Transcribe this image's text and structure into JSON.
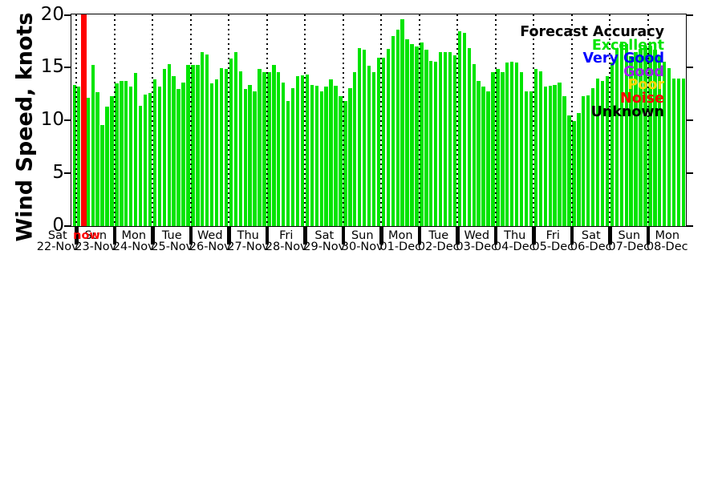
{
  "figure": {
    "ylabel": "Wind Speed, knots",
    "yticks": [
      0,
      5,
      10,
      15,
      20
    ],
    "now_label": "now",
    "background": "#ffffff"
  },
  "legend": {
    "title": "Forecast Accuracy",
    "title_color": "#000000",
    "entries": [
      {
        "label": "Excellent",
        "color": "#00e400"
      },
      {
        "label": "Very Good",
        "color": "#0000ff"
      },
      {
        "label": "Good",
        "color": "#a020f0"
      },
      {
        "label": "Poor",
        "color": "#ffd700"
      },
      {
        "label": "Noise",
        "color": "#ff0000"
      },
      {
        "label": "Unknown",
        "color": "#000000"
      }
    ]
  },
  "chart_data": {
    "type": "bar",
    "title": "",
    "xlabel": "",
    "ylabel": "Wind Speed, knots",
    "ylim": [
      0,
      20
    ],
    "grid": "vertical-dotted-daily",
    "legend_position": "top-right",
    "bar_color": "#00e400",
    "now_line": {
      "label": "now",
      "color": "#ff0000",
      "value": 20,
      "day": "Sun 23-Nov",
      "slot": 1
    },
    "days": [
      {
        "weekday": "Sat",
        "date": "22-Nov",
        "partial": true,
        "values": [
          13.0,
          13.4
        ]
      },
      {
        "weekday": "Sun",
        "date": "23-Nov",
        "values": [
          13.2,
          12.0,
          12.2,
          15.3,
          12.7,
          9.6,
          11.3,
          12.3
        ]
      },
      {
        "weekday": "Mon",
        "date": "24-Nov",
        "values": [
          13.5,
          13.8,
          13.8,
          13.2,
          14.5,
          11.4,
          12.5,
          12.6
        ]
      },
      {
        "weekday": "Tue",
        "date": "25-Nov",
        "values": [
          13.9,
          13.2,
          14.9,
          15.4,
          14.2,
          13.0,
          13.6,
          15.3
        ]
      },
      {
        "weekday": "Wed",
        "date": "26-Nov",
        "values": [
          15.3,
          15.3,
          16.5,
          16.3,
          13.5,
          13.9,
          15.0,
          14.9
        ]
      },
      {
        "weekday": "Thu",
        "date": "27-Nov",
        "values": [
          15.9,
          16.5,
          14.7,
          13.0,
          13.4,
          12.8,
          14.9,
          14.6
        ]
      },
      {
        "weekday": "Fri",
        "date": "28-Nov",
        "values": [
          14.6,
          15.3,
          14.6,
          13.6,
          11.9,
          13.1,
          14.2,
          14.3
        ]
      },
      {
        "weekday": "Sat",
        "date": "29-Nov",
        "values": [
          14.4,
          13.4,
          13.3,
          12.8,
          13.2,
          13.9,
          13.3,
          12.3
        ]
      },
      {
        "weekday": "Sun",
        "date": "30-Nov",
        "values": [
          11.9,
          13.1,
          14.6,
          16.9,
          16.7,
          15.2,
          14.6,
          16.0
        ]
      },
      {
        "weekday": "Mon",
        "date": "01-Dec",
        "values": [
          16.0,
          16.8,
          18.0,
          18.6,
          19.6,
          17.7,
          17.3,
          17.0
        ]
      },
      {
        "weekday": "Tue",
        "date": "02-Dec",
        "values": [
          17.4,
          16.7,
          15.7,
          15.6,
          16.5,
          16.5,
          16.5,
          16.2
        ]
      },
      {
        "weekday": "Wed",
        "date": "03-Dec",
        "values": [
          18.5,
          18.3,
          16.9,
          15.4,
          13.8,
          13.2,
          12.8,
          14.6
        ]
      },
      {
        "weekday": "Thu",
        "date": "04-Dec",
        "values": [
          14.9,
          14.6,
          15.5,
          15.6,
          15.5,
          14.6,
          12.8,
          12.8
        ]
      },
      {
        "weekday": "Fri",
        "date": "05-Dec",
        "values": [
          14.9,
          14.7,
          13.2,
          13.3,
          13.4,
          13.6,
          12.3,
          10.5
        ]
      },
      {
        "weekday": "Sat",
        "date": "06-Dec",
        "values": [
          10.0,
          10.7,
          12.3,
          12.4,
          13.1,
          14.0,
          13.8,
          14.2
        ]
      },
      {
        "weekday": "Sun",
        "date": "07-Dec",
        "values": [
          15.5,
          16.9,
          17.5,
          17.3,
          16.1,
          16.5,
          16.8,
          17.0
        ]
      },
      {
        "weekday": "Mon",
        "date": "08-Dec",
        "values": [
          17.1,
          16.7,
          16.2,
          15.6,
          15.0,
          14.0,
          14.0,
          14.0
        ]
      }
    ]
  }
}
